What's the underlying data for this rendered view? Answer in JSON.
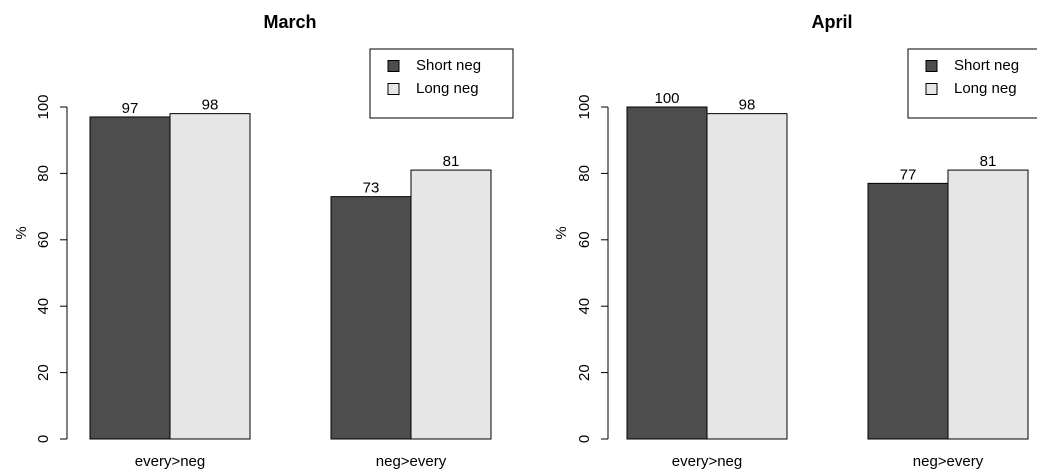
{
  "chart_data": [
    {
      "type": "bar",
      "title": "March",
      "ylabel": "%",
      "ylim": [
        0,
        100
      ],
      "yticks": [
        0,
        20,
        40,
        60,
        80,
        100
      ],
      "categories": [
        "every>neg",
        "neg>every"
      ],
      "series": [
        {
          "name": "Short neg",
          "color": "#4d4d4d",
          "values": [
            97,
            73
          ]
        },
        {
          "name": "Long neg",
          "color": "#e6e6e6",
          "values": [
            98,
            81
          ]
        }
      ],
      "value_labels": [
        [
          "97",
          "73"
        ],
        [
          "98",
          "81"
        ]
      ],
      "legend": "top-right",
      "grid": false
    },
    {
      "type": "bar",
      "title": "April",
      "ylabel": "%",
      "ylim": [
        0,
        100
      ],
      "yticks": [
        0,
        20,
        40,
        60,
        80,
        100
      ],
      "categories": [
        "every>neg",
        "neg>every"
      ],
      "series": [
        {
          "name": "Short neg",
          "color": "#4d4d4d",
          "values": [
            100,
            77
          ]
        },
        {
          "name": "Long neg",
          "color": "#e6e6e6",
          "values": [
            98,
            81
          ]
        }
      ],
      "value_labels": [
        [
          "100",
          "77"
        ],
        [
          "98",
          "81"
        ]
      ],
      "legend": "top-right",
      "grid": false
    }
  ]
}
